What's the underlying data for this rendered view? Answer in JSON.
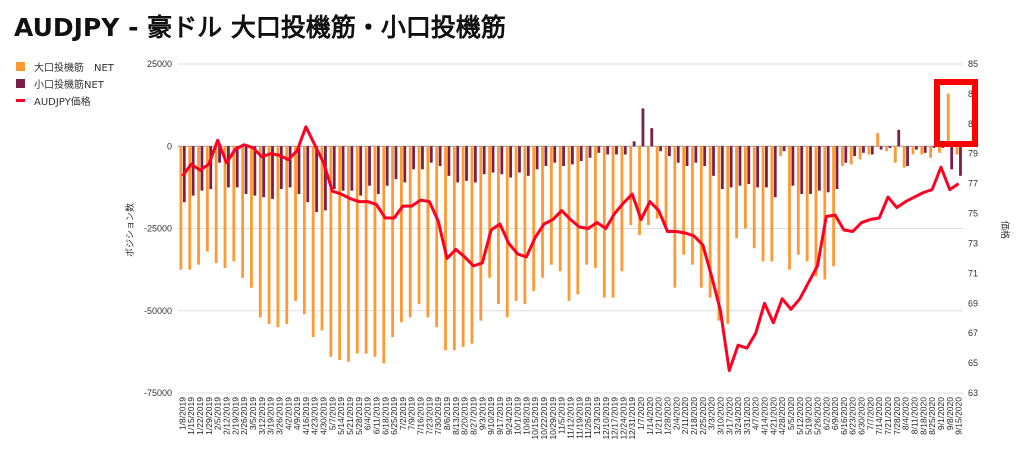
{
  "title": "AUDJPY - 豪ドル 大口投機筋・小口投機筋",
  "chart_data": {
    "type": "bar+line",
    "title": "AUDJPY - 豪ドル 大口投機筋・小口投機筋",
    "ylabel": "ポジション数",
    "y2label": "価格",
    "ylim": [
      -75000,
      25000
    ],
    "yticks": [
      25000,
      0,
      -25000,
      -50000,
      -75000
    ],
    "y2lim": [
      63,
      85
    ],
    "y2ticks": [
      85,
      83,
      81,
      79,
      77,
      75,
      73,
      71,
      69,
      67,
      65,
      63
    ],
    "legend_position": "top-left",
    "categories": [
      "1/8/2019",
      "1/15/2019",
      "1/22/2019",
      "1/29/2019",
      "2/5/2019",
      "2/12/2019",
      "2/19/2019",
      "2/26/2019",
      "3/5/2019",
      "3/12/2019",
      "3/19/2019",
      "3/26/2019",
      "4/2/2019",
      "4/9/2019",
      "4/16/2019",
      "4/23/2019",
      "4/30/2019",
      "5/7/2019",
      "5/14/2019",
      "5/21/2019",
      "5/28/2019",
      "6/4/2019",
      "6/11/2019",
      "6/18/2019",
      "6/25/2019",
      "7/2/2019",
      "7/9/2019",
      "7/16/2019",
      "7/23/2019",
      "7/30/2019",
      "8/6/2019",
      "8/13/2019",
      "8/20/2019",
      "8/27/2019",
      "9/3/2019",
      "9/10/2019",
      "9/17/2019",
      "9/24/2019",
      "10/1/2019",
      "10/8/2019",
      "10/15/2019",
      "10/22/2019",
      "10/29/2019",
      "11/5/2019",
      "11/12/2019",
      "11/19/2019",
      "11/26/2019",
      "12/3/2019",
      "12/10/2019",
      "12/17/2019",
      "12/24/2019",
      "12/31/2019",
      "1/7/2020",
      "1/14/2020",
      "1/21/2020",
      "1/28/2020",
      "2/4/2020",
      "2/11/2020",
      "2/18/2020",
      "2/25/2020",
      "3/3/2020",
      "3/10/2020",
      "3/17/2020",
      "3/24/2020",
      "3/31/2020",
      "4/7/2020",
      "4/14/2020",
      "4/21/2020",
      "4/28/2020",
      "5/5/2020",
      "5/12/2020",
      "5/19/2020",
      "5/26/2020",
      "6/2/2020",
      "6/9/2020",
      "6/16/2020",
      "6/23/2020",
      "6/30/2020",
      "7/7/2020",
      "7/14/2020",
      "7/21/2020",
      "7/28/2020",
      "8/4/2020",
      "8/11/2020",
      "8/18/2020",
      "8/25/2020",
      "9/1/2020",
      "9/8/2020",
      "9/15/2020"
    ],
    "series": [
      {
        "name": "大口投機筋　NET",
        "type": "bar",
        "color": "#FF9933",
        "values": [
          -37500,
          -37500,
          -36000,
          -32000,
          -35500,
          -37000,
          -35000,
          -40000,
          -43000,
          -52000,
          -54000,
          -55000,
          -54000,
          -47000,
          -51000,
          -58000,
          -56000,
          -64000,
          -65000,
          -65500,
          -63000,
          -63000,
          -64000,
          -66000,
          -58000,
          -53500,
          -52000,
          -48000,
          -52000,
          -55000,
          -62000,
          -62000,
          -61000,
          -60000,
          -53000,
          -40000,
          -48000,
          -52000,
          -47000,
          -48000,
          -44000,
          -40000,
          -36000,
          -38000,
          -47000,
          -45000,
          -36000,
          -37000,
          -46000,
          -46000,
          -38000,
          -24000,
          -27000,
          -24000,
          -22000,
          -24000,
          -43000,
          -33000,
          -36000,
          -43000,
          -46000,
          -53000,
          -54000,
          -28000,
          -25000,
          -31000,
          -35000,
          -35000,
          -3000,
          -37500,
          -33000,
          -35000,
          -39500,
          -40500,
          -36500,
          -6000,
          -5500,
          -4000,
          -2500,
          4000,
          -1500,
          -5000,
          -6500,
          -2500,
          -2500,
          -3500,
          -2000,
          16000,
          -2500
        ]
      },
      {
        "name": "小口投機筋NET",
        "type": "bar",
        "color": "#7B1F47",
        "values": [
          -17000,
          -15000,
          -13500,
          -13000,
          -5000,
          -12500,
          -12500,
          -14500,
          -15000,
          -15500,
          -16000,
          -13000,
          -12500,
          -14500,
          -17000,
          -20000,
          -19500,
          -13000,
          -13500,
          -13500,
          -15000,
          -12000,
          -14500,
          -12000,
          -10000,
          -11000,
          -7000,
          -7000,
          -5000,
          -6000,
          -9000,
          -11000,
          -10500,
          -11000,
          -8500,
          -8000,
          -8500,
          -9500,
          -8000,
          -9000,
          -7000,
          -6000,
          -5000,
          -6000,
          -5500,
          -4500,
          -3500,
          -2000,
          -2500,
          -2500,
          -2500,
          1500,
          11500,
          5500,
          -1500,
          -3000,
          -5000,
          -6000,
          -5000,
          -6000,
          -9000,
          -13000,
          -12500,
          -12000,
          -11500,
          -12500,
          -12500,
          -15500,
          -1500,
          -12000,
          -14500,
          -14500,
          -13500,
          -14000,
          -13000,
          -5000,
          -3000,
          -2000,
          -2500,
          -1000,
          -500,
          5000,
          -6000,
          -1000,
          -2000,
          -500,
          -500,
          -7000,
          -9000
        ]
      },
      {
        "name": "AUDJPY価格",
        "type": "line",
        "axis": "right",
        "color": "#FF0022",
        "values": [
          77.5,
          78.3,
          77.9,
          78.3,
          79.9,
          78.4,
          79.3,
          79.6,
          79.4,
          78.8,
          79.0,
          78.9,
          78.6,
          79.2,
          80.8,
          79.6,
          78.4,
          76.5,
          76.3,
          76.0,
          75.8,
          75.8,
          75.6,
          74.7,
          74.7,
          75.5,
          75.5,
          75.9,
          75.8,
          74.5,
          72.0,
          72.6,
          72.1,
          71.5,
          71.7,
          73.9,
          74.3,
          73.0,
          72.3,
          72.1,
          73.4,
          74.3,
          74.6,
          75.2,
          74.6,
          74.1,
          74.0,
          74.4,
          74.0,
          75.0,
          75.7,
          76.3,
          74.6,
          75.8,
          75.2,
          73.8,
          73.8,
          73.7,
          73.5,
          72.9,
          70.8,
          68.5,
          64.5,
          66.2,
          66.0,
          67.0,
          69.0,
          67.7,
          69.3,
          68.6,
          69.3,
          70.4,
          71.5,
          74.8,
          74.9,
          73.9,
          73.8,
          74.4,
          74.6,
          74.7,
          76.1,
          75.4,
          75.8,
          76.1,
          76.4,
          76.6,
          78.1,
          76.6,
          77.0
        ]
      }
    ]
  }
}
